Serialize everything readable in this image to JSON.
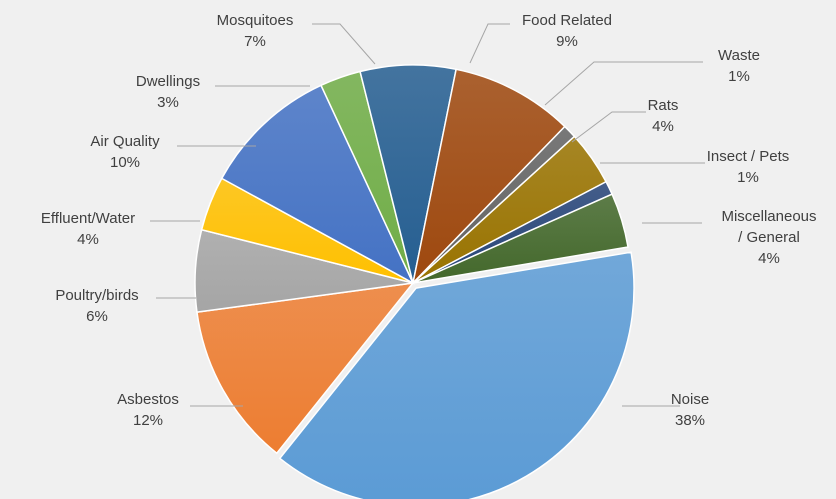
{
  "chart_data": {
    "type": "pie",
    "title": "",
    "slices": [
      {
        "label": "Noise",
        "pct_label": "38%",
        "value": 38,
        "color": "#5b9bd5"
      },
      {
        "label": "Asbestos",
        "pct_label": "12%",
        "value": 12,
        "color": "#ed7d31"
      },
      {
        "label": "Poultry/birds",
        "pct_label": "6%",
        "value": 6,
        "color": "#a5a5a5"
      },
      {
        "label": "Effluent/Water",
        "pct_label": "4%",
        "value": 4,
        "color": "#ffc000"
      },
      {
        "label": "Air Quality",
        "pct_label": "10%",
        "value": 10,
        "color": "#4472c4"
      },
      {
        "label": "Dwellings",
        "pct_label": "3%",
        "value": 3,
        "color": "#70ad47"
      },
      {
        "label": "Mosquitoes",
        "pct_label": "7%",
        "value": 7,
        "color": "#255e91"
      },
      {
        "label": "Food Related",
        "pct_label": "9%",
        "value": 9,
        "color": "#9e480e"
      },
      {
        "label": "Waste",
        "pct_label": "1%",
        "value": 1,
        "color": "#636363"
      },
      {
        "label": "Rats",
        "pct_label": "4%",
        "value": 4,
        "color": "#997300"
      },
      {
        "label": "Insect / Pets",
        "pct_label": "1%",
        "value": 1,
        "color": "#264478"
      },
      {
        "label": "Miscellaneous / General",
        "pct_label": "4%",
        "value": 4,
        "color": "#43682b"
      }
    ]
  }
}
